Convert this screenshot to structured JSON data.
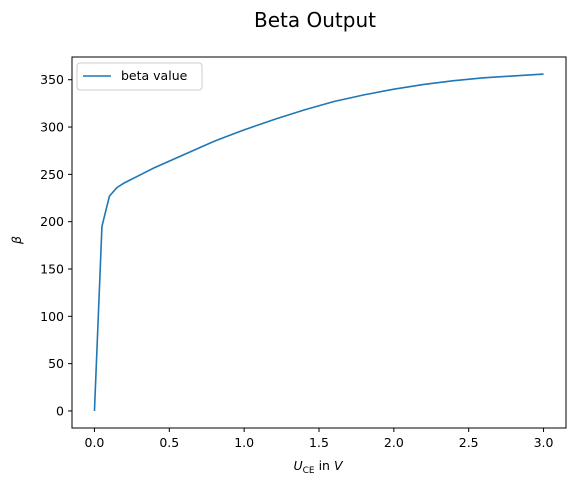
{
  "chart_data": {
    "type": "line",
    "title": "Beta Output",
    "xlabel": {
      "symbol": "U",
      "subscript": "CE",
      "suffix": " in ",
      "unit": "V"
    },
    "ylabel": "β",
    "xlim": [
      -0.15,
      3.15
    ],
    "ylim": [
      -18,
      374
    ],
    "xticks": [
      0.0,
      0.5,
      1.0,
      1.5,
      2.0,
      2.5,
      3.0
    ],
    "xtick_labels": [
      "0.0",
      "0.5",
      "1.0",
      "1.5",
      "2.0",
      "2.5",
      "3.0"
    ],
    "yticks": [
      0,
      50,
      100,
      150,
      200,
      250,
      300,
      350
    ],
    "ytick_labels": [
      "0",
      "50",
      "100",
      "150",
      "200",
      "250",
      "300",
      "350"
    ],
    "grid": false,
    "legend_position": "top-left",
    "color": "#1f77b4",
    "series": [
      {
        "name": "beta value",
        "x": [
          0.0,
          0.05,
          0.1,
          0.15,
          0.2,
          0.3,
          0.4,
          0.5,
          0.6,
          0.7,
          0.8,
          0.9,
          1.0,
          1.2,
          1.4,
          1.6,
          1.8,
          2.0,
          2.2,
          2.4,
          2.6,
          2.8,
          3.0
        ],
        "y": [
          0,
          195,
          227,
          236,
          241,
          249,
          257,
          264,
          271,
          278,
          285,
          291,
          297,
          308,
          318,
          327,
          334,
          340,
          345,
          349,
          352,
          354,
          356
        ]
      }
    ]
  }
}
